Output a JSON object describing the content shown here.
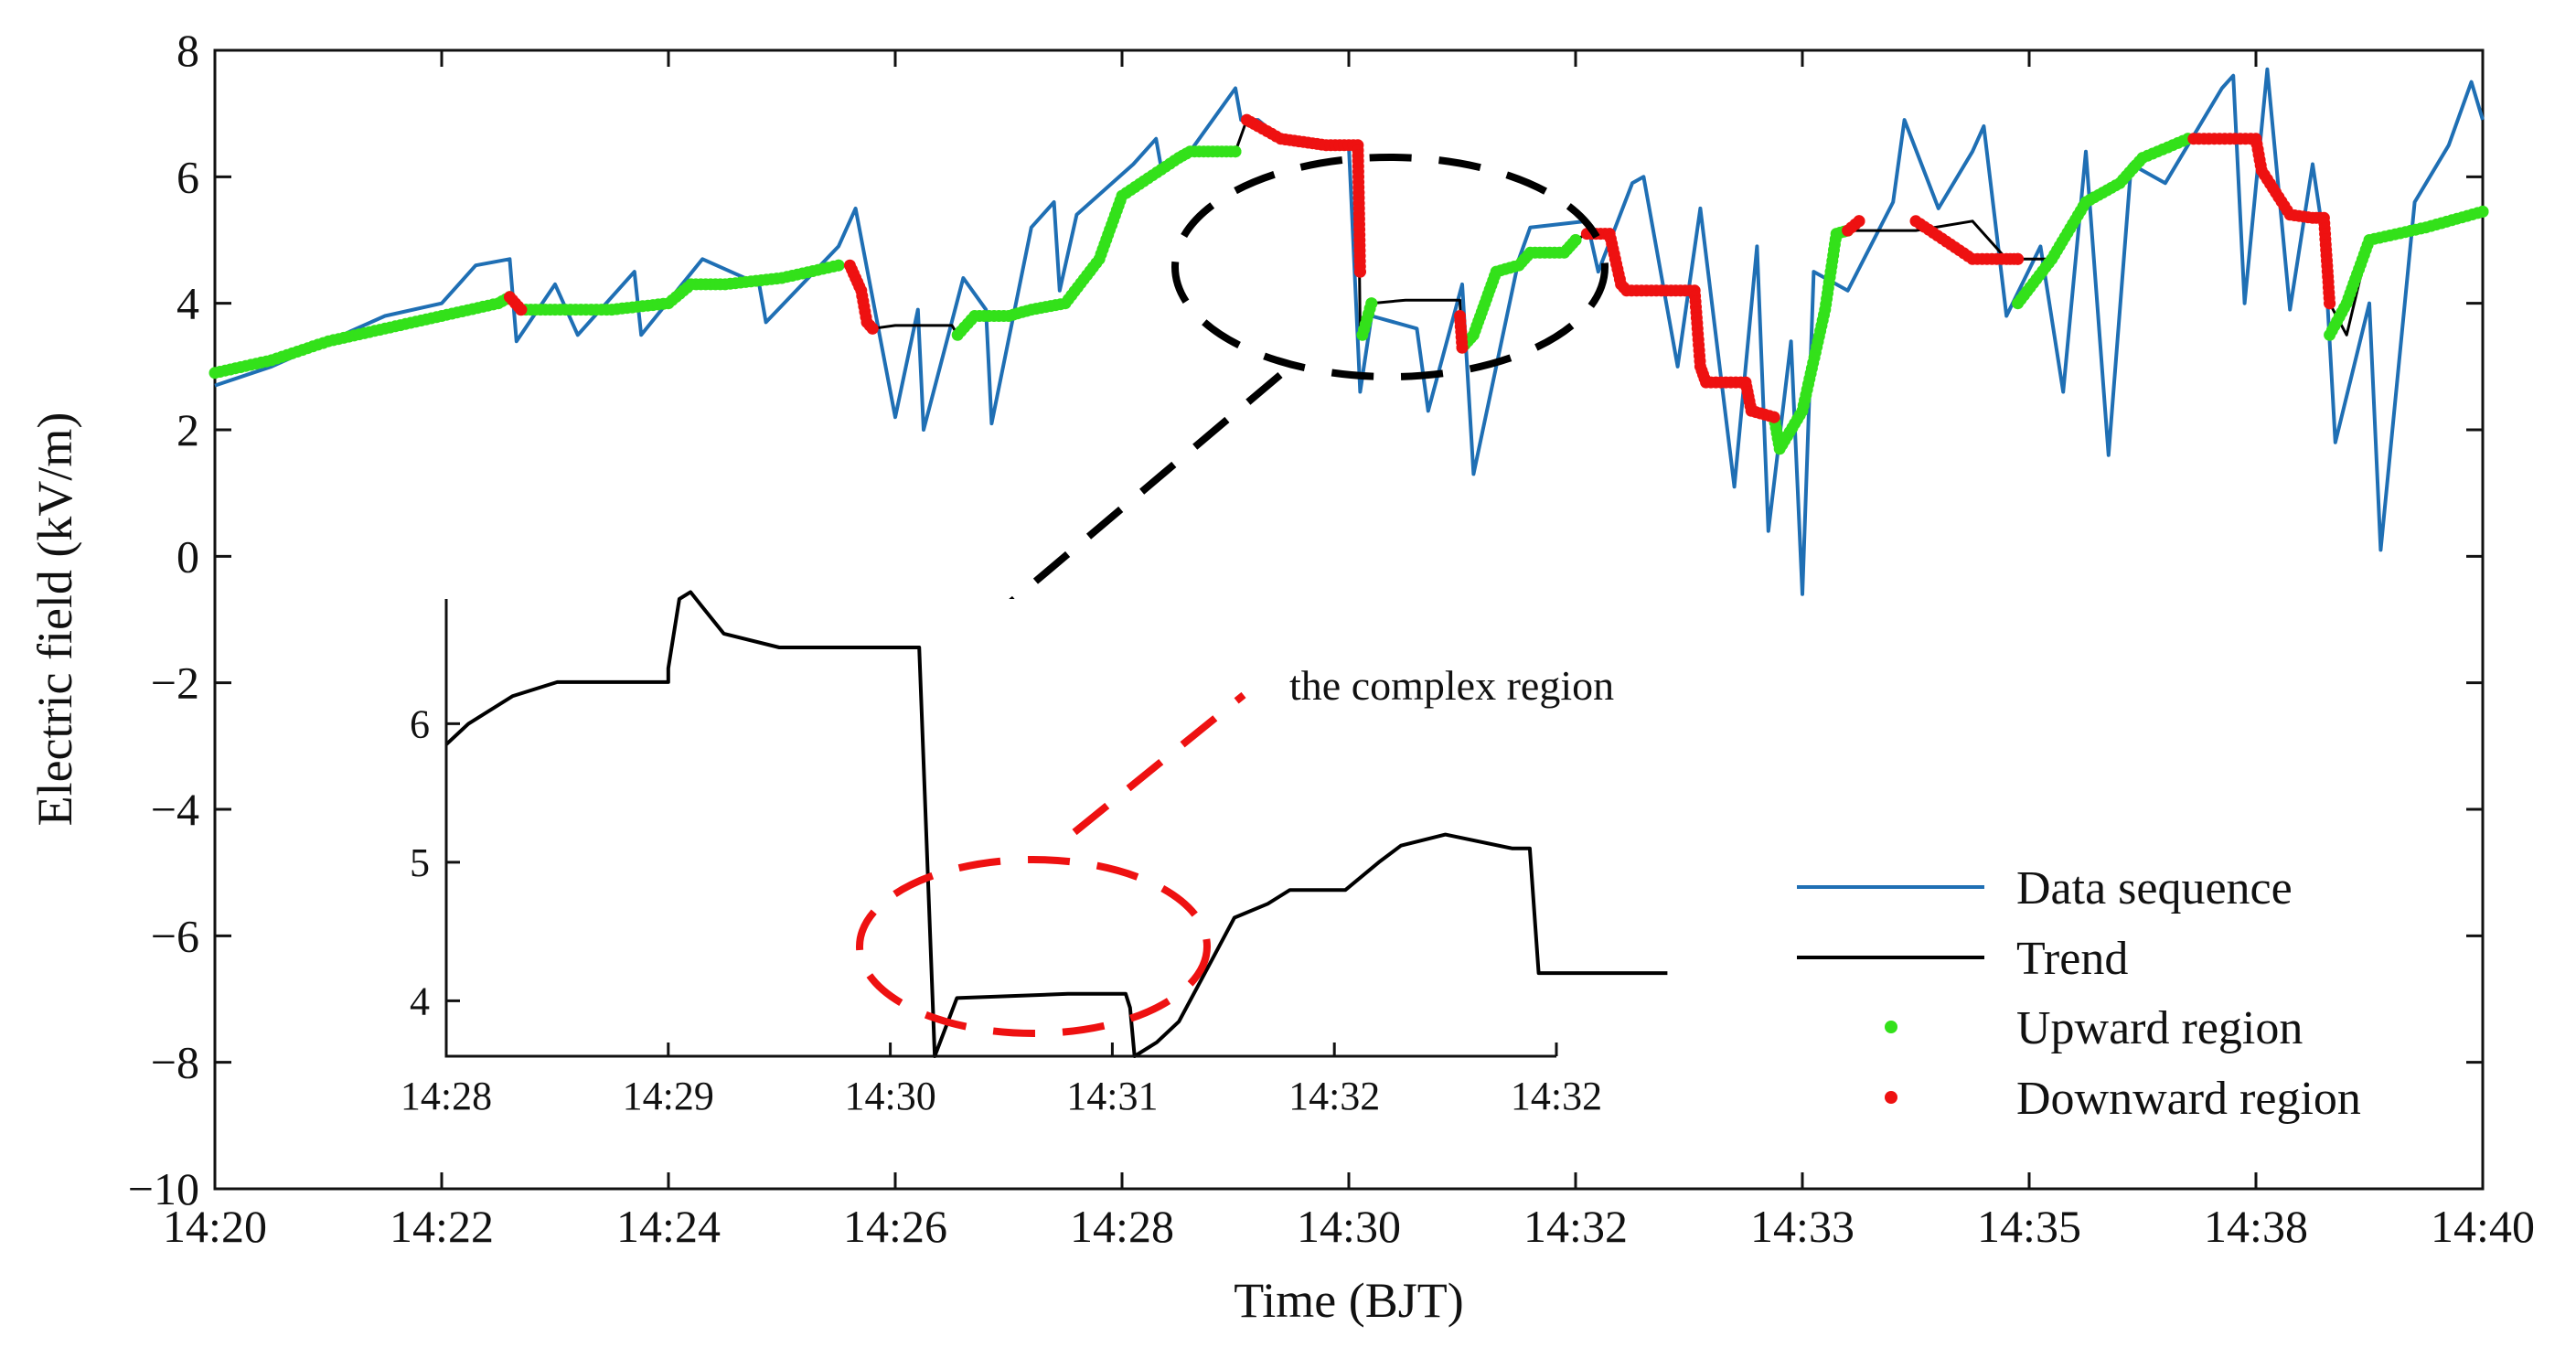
{
  "colors": {
    "data_sequence": "#1f6fb4",
    "trend": "#000000",
    "upward": "#33e11a",
    "downward": "#ee1111",
    "highlight_black": "#000000",
    "highlight_red": "#ee1111"
  },
  "chart_data": [
    {
      "type": "line",
      "id": "main",
      "title": "",
      "xlabel": "Time (BJT)",
      "ylabel": "Electric field (kV/m)",
      "xlim": [
        0,
        20
      ],
      "ylim": [
        -10,
        8
      ],
      "x_ticks": [
        0,
        2,
        4,
        6,
        8,
        10,
        12,
        14,
        16,
        18,
        20
      ],
      "x_tick_labels": [
        "14:20",
        "14:22",
        "14:24",
        "14:26",
        "14:28",
        "14:30",
        "14:32",
        "14:33",
        "14:35",
        "14:38",
        "14:40"
      ],
      "y_ticks": [
        8,
        6,
        4,
        2,
        0,
        -2,
        -4,
        -6,
        -8,
        -10
      ],
      "y_tick_labels": [
        "8",
        "6",
        "4",
        "2",
        "0",
        "−2",
        "−4",
        "−6",
        "−8",
        "−10"
      ],
      "grid": false,
      "legend_position": "bottom-right",
      "series": [
        {
          "name": "Data sequence",
          "style": "line",
          "x": [
            0,
            0.5,
            1.0,
            1.5,
            2.0,
            2.3,
            2.6,
            2.66,
            3.0,
            3.2,
            3.7,
            3.76,
            4.3,
            4.8,
            4.86,
            5.5,
            5.65,
            6.0,
            6.2,
            6.25,
            6.6,
            6.8,
            6.85,
            7.2,
            7.4,
            7.45,
            7.6,
            8.1,
            8.3,
            8.35,
            8.6,
            9.0,
            9.05,
            9.2,
            9.4,
            9.6,
            10.0,
            10.1,
            10.2,
            10.6,
            10.7,
            11.0,
            11.1,
            11.5,
            11.6,
            12.1,
            12.2,
            12.5,
            12.6,
            12.9,
            13.1,
            13.4,
            13.6,
            13.7,
            13.9,
            14.0,
            14.1,
            14.4,
            14.8,
            14.9,
            15.2,
            15.5,
            15.6,
            15.8,
            16.1,
            16.3,
            16.5,
            16.7,
            16.9,
            17.2,
            17.7,
            17.8,
            17.9,
            18.1,
            18.3,
            18.5,
            18.6,
            18.7,
            19.0,
            19.1,
            19.4,
            19.7,
            19.9,
            20.0
          ],
          "y": [
            2.7,
            3.0,
            3.4,
            3.8,
            4.0,
            4.6,
            4.7,
            3.4,
            4.3,
            3.5,
            4.5,
            3.5,
            4.7,
            4.3,
            3.7,
            4.9,
            5.5,
            2.2,
            3.9,
            2.0,
            4.4,
            3.9,
            2.1,
            5.2,
            5.6,
            4.2,
            5.4,
            6.2,
            6.6,
            6.1,
            6.4,
            7.4,
            6.9,
            6.9,
            6.6,
            6.5,
            6.5,
            2.6,
            3.8,
            3.6,
            2.3,
            4.3,
            1.3,
            4.7,
            5.2,
            5.3,
            4.5,
            5.9,
            6.0,
            3.0,
            5.5,
            1.1,
            4.9,
            0.4,
            3.4,
            -0.6,
            4.5,
            4.2,
            5.6,
            6.9,
            5.5,
            6.4,
            6.8,
            3.8,
            4.9,
            2.6,
            6.4,
            1.6,
            6.2,
            5.9,
            7.4,
            7.6,
            4.0,
            7.7,
            3.9,
            6.2,
            5.0,
            1.8,
            4.0,
            0.1,
            5.6,
            6.5,
            7.5,
            6.9
          ]
        },
        {
          "name": "Trend",
          "style": "line",
          "x": [
            0,
            0.5,
            1.0,
            1.5,
            2.0,
            2.5,
            2.6,
            2.7,
            3.0,
            3.5,
            4.0,
            4.2,
            4.5,
            5.0,
            5.5,
            5.6,
            5.7,
            5.75,
            5.8,
            6.0,
            6.5,
            6.55,
            6.7,
            7.0,
            7.2,
            7.5,
            7.8,
            8.0,
            8.5,
            8.6,
            8.8,
            9.0,
            9.1,
            9.2,
            9.4,
            9.6,
            9.8,
            10.0,
            10.08,
            10.1,
            10.12,
            10.2,
            10.5,
            10.98,
            11.0,
            11.1,
            11.2,
            11.3,
            11.5,
            11.6,
            11.9,
            12.0,
            12.1,
            12.3,
            12.4,
            12.45,
            13.05,
            13.1,
            13.15,
            13.5,
            13.55,
            13.75,
            13.8,
            14.0,
            14.2,
            14.3,
            14.4,
            15.0,
            15.5,
            15.8,
            15.9,
            16.2,
            16.5,
            16.8,
            17.0,
            17.4,
            17.45,
            18.0,
            18.05,
            18.3,
            18.5,
            18.6,
            18.65,
            18.8,
            19.0,
            19.5,
            20.0
          ],
          "y": [
            2.9,
            3.1,
            3.4,
            3.6,
            3.8,
            4.0,
            4.1,
            3.9,
            3.9,
            3.9,
            4.0,
            4.3,
            4.3,
            4.4,
            4.6,
            4.6,
            4.2,
            3.7,
            3.6,
            3.65,
            3.65,
            3.5,
            3.8,
            3.8,
            3.9,
            4.0,
            4.7,
            5.7,
            6.3,
            6.4,
            6.4,
            6.4,
            6.9,
            6.8,
            6.6,
            6.55,
            6.5,
            6.5,
            6.5,
            3.6,
            3.5,
            4.0,
            4.05,
            4.05,
            3.3,
            3.5,
            4.0,
            4.5,
            4.6,
            4.8,
            4.8,
            5.0,
            5.1,
            5.1,
            4.3,
            4.2,
            4.2,
            3.0,
            2.75,
            2.75,
            2.3,
            2.2,
            1.7,
            2.3,
            3.9,
            5.1,
            5.15,
            5.15,
            5.3,
            4.7,
            4.7,
            4.7,
            5.6,
            5.9,
            6.3,
            6.6,
            6.6,
            6.6,
            6.1,
            5.4,
            5.35,
            5.35,
            4.0,
            3.5,
            5.0,
            5.2,
            5.45
          ]
        },
        {
          "name": "Upward region",
          "style": "dots",
          "color_key": "upward",
          "segments": [
            {
              "x": [
                0,
                0.5,
                1.0,
                1.5,
                2.0,
                2.5,
                2.6
              ],
              "y": [
                2.9,
                3.1,
                3.4,
                3.6,
                3.8,
                4.0,
                4.1
              ]
            },
            {
              "x": [
                2.7,
                3.0,
                3.5,
                4.0,
                4.2,
                4.5,
                5.0,
                5.5
              ],
              "y": [
                3.9,
                3.9,
                3.9,
                4.0,
                4.3,
                4.3,
                4.4,
                4.6
              ]
            },
            {
              "x": [
                6.55,
                6.7,
                7.0,
                7.2,
                7.5,
                7.8,
                8.0,
                8.5,
                8.6,
                8.8,
                9.0
              ],
              "y": [
                3.5,
                3.8,
                3.8,
                3.9,
                4.0,
                4.7,
                5.7,
                6.3,
                6.4,
                6.4,
                6.4
              ]
            },
            {
              "x": [
                10.12,
                10.2
              ],
              "y": [
                3.5,
                4.0
              ]
            },
            {
              "x": [
                11.0,
                11.1,
                11.2,
                11.3,
                11.5,
                11.6,
                11.9,
                12.0
              ],
              "y": [
                3.3,
                3.5,
                4.0,
                4.5,
                4.6,
                4.8,
                4.8,
                5.0
              ]
            },
            {
              "x": [
                13.75,
                13.8,
                14.0,
                14.2,
                14.3,
                14.4
              ],
              "y": [
                2.2,
                1.7,
                2.3,
                3.9,
                5.1,
                5.15
              ]
            },
            {
              "x": [
                15.9,
                16.2,
                16.5,
                16.8,
                17.0,
                17.4
              ],
              "y": [
                4.0,
                4.7,
                5.6,
                5.9,
                6.3,
                6.6
              ]
            },
            {
              "x": [
                18.65,
                18.8,
                19.0,
                19.5,
                20.0
              ],
              "y": [
                3.5,
                4.0,
                5.0,
                5.2,
                5.45
              ]
            }
          ]
        },
        {
          "name": "Downward region",
          "style": "dots",
          "color_key": "downward",
          "segments": [
            {
              "x": [
                2.6,
                2.65,
                2.7
              ],
              "y": [
                4.1,
                4.0,
                3.9
              ]
            },
            {
              "x": [
                5.6,
                5.7,
                5.75,
                5.8
              ],
              "y": [
                4.6,
                4.2,
                3.7,
                3.6
              ]
            },
            {
              "x": [
                9.1,
                9.2,
                9.4,
                9.6,
                9.8,
                10.0,
                10.08,
                10.1
              ],
              "y": [
                6.9,
                6.8,
                6.6,
                6.55,
                6.5,
                6.5,
                6.5,
                4.5
              ]
            },
            {
              "x": [
                10.98,
                11.0
              ],
              "y": [
                3.8,
                3.3
              ]
            },
            {
              "x": [
                12.1,
                12.3,
                12.4,
                12.45,
                12.8,
                13.05,
                13.1,
                13.15,
                13.5,
                13.55,
                13.75
              ],
              "y": [
                5.1,
                5.1,
                4.3,
                4.2,
                4.2,
                4.2,
                3.0,
                2.75,
                2.75,
                2.3,
                2.2
              ]
            },
            {
              "x": [
                14.4,
                14.5
              ],
              "y": [
                5.15,
                5.3
              ]
            },
            {
              "x": [
                15.0,
                15.5,
                15.8,
                15.9
              ],
              "y": [
                5.3,
                4.7,
                4.7,
                4.7
              ]
            },
            {
              "x": [
                17.45,
                18.0,
                18.05,
                18.3,
                18.5,
                18.6,
                18.65
              ],
              "y": [
                6.6,
                6.6,
                6.1,
                5.4,
                5.35,
                5.35,
                4.0
              ]
            }
          ]
        }
      ]
    },
    {
      "type": "line",
      "id": "inset",
      "xlim": [
        0,
        5
      ],
      "ylim": [
        3.6,
        6.9
      ],
      "x_ticks": [
        0,
        1,
        2,
        3,
        4,
        5
      ],
      "x_tick_labels": [
        "14:28",
        "14:29",
        "14:30",
        "14:31",
        "14:32",
        "14:32"
      ],
      "y_ticks": [
        4,
        5,
        6
      ],
      "y_tick_labels": [
        "4",
        "5",
        "6"
      ],
      "series": [
        {
          "name": "Trend",
          "x": [
            0,
            0.1,
            0.3,
            0.5,
            0.8,
            1.0,
            1.0,
            1.05,
            1.1,
            1.15,
            1.25,
            1.5,
            1.9,
            2.1,
            2.1,
            2.13,
            2.2,
            2.3,
            2.8,
            3.04,
            3.06,
            3.08,
            3.1,
            3.2,
            3.3,
            3.45,
            3.55,
            3.7,
            3.8,
            4.0,
            4.05,
            4.2,
            4.3,
            4.5,
            4.8,
            4.88,
            4.92,
            5.5
          ],
          "y": [
            5.85,
            6.0,
            6.2,
            6.3,
            6.3,
            6.3,
            6.4,
            6.9,
            6.95,
            6.85,
            6.65,
            6.55,
            6.55,
            6.55,
            6.55,
            6.55,
            3.6,
            4.02,
            4.05,
            4.05,
            4.05,
            3.95,
            3.6,
            3.7,
            3.85,
            4.3,
            4.6,
            4.7,
            4.8,
            4.8,
            4.8,
            5.0,
            5.12,
            5.2,
            5.1,
            5.1,
            4.2,
            4.2
          ]
        }
      ]
    }
  ],
  "annotation": {
    "complex_region_label": "the complex region"
  }
}
